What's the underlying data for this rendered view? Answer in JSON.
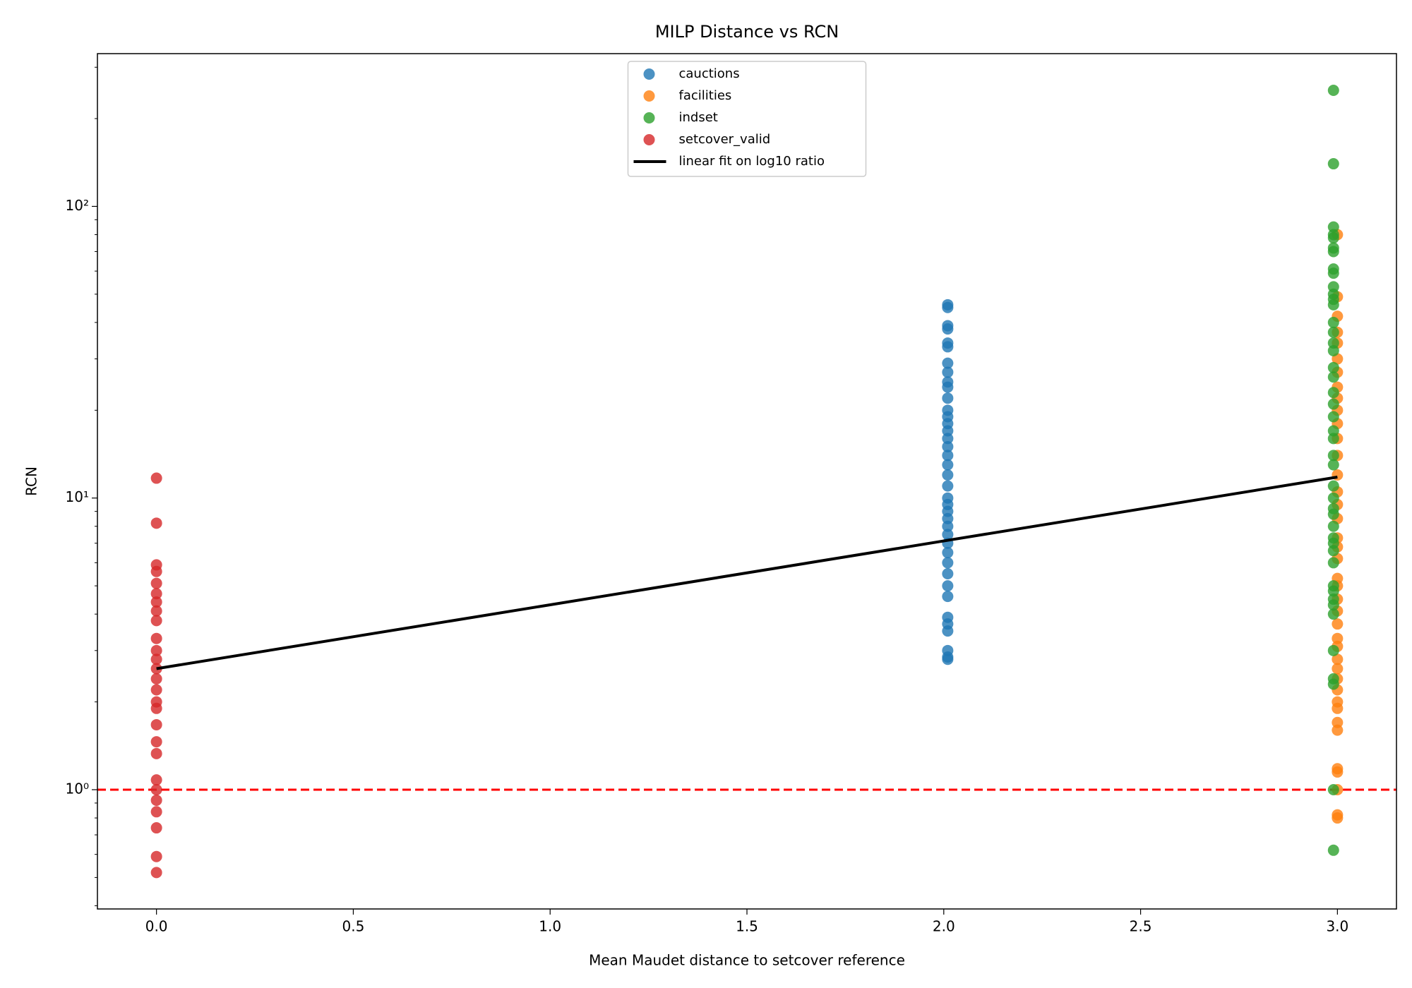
{
  "chart_data": {
    "type": "scatter",
    "title": "MILP Distance vs RCN",
    "x_label": "Mean Maudet distance to setcover reference",
    "y_label": "RCN",
    "log_y": true,
    "xlim": [
      -0.15,
      3.15
    ],
    "ylim": [
      0.39,
      334
    ],
    "xticks": [
      {
        "value": 0,
        "label": "0.0"
      },
      0.5,
      {
        "value": 1,
        "label": "1.0"
      },
      1.5,
      {
        "value": 2,
        "label": "2.0"
      },
      2.5,
      {
        "value": 3,
        "label": "3.0"
      }
    ],
    "yticks": [
      {
        "value": 1,
        "label": "10⁰"
      },
      {
        "value": 10,
        "label": "10¹"
      },
      {
        "value": 100,
        "label": "10²"
      }
    ],
    "yminorticks": [
      0.4,
      0.5,
      0.6,
      0.7,
      0.8,
      0.9,
      2,
      3,
      4,
      5,
      6,
      7,
      8,
      9,
      20,
      30,
      40,
      50,
      60,
      70,
      80,
      90,
      200,
      300
    ],
    "legend": "upper center",
    "series": [
      {
        "name": "cauctions",
        "color": "#1f77b4",
        "x": [
          2.01,
          2.01,
          2.01,
          2.01,
          2.01,
          2.01,
          2.01,
          2.01,
          2.01,
          2.01,
          2.01,
          2.01,
          2.01,
          2.01,
          2.01,
          2.01,
          2.01,
          2.01,
          2.01,
          2.01,
          2.01,
          2.01,
          2.01,
          2.01,
          2.01,
          2.01,
          2.01,
          2.01,
          2.01,
          2.01,
          2.01,
          2.01,
          2.01,
          2.01,
          2.01,
          2.01,
          2.01,
          2.01,
          2.01
        ],
        "values": [
          46,
          45,
          39,
          38,
          34,
          33,
          29,
          27,
          25,
          24,
          22,
          20,
          19,
          18,
          17,
          16,
          15,
          14,
          13,
          12,
          11,
          10,
          9.5,
          9,
          8.5,
          8,
          7.5,
          7,
          6.5,
          6,
          5.5,
          5,
          4.6,
          3.9,
          3.7,
          3.5,
          3.0,
          2.85,
          2.8
        ]
      },
      {
        "name": "facilities",
        "color": "#ff7f0e",
        "x": [
          3,
          3,
          3,
          3,
          3,
          3,
          3,
          3,
          3,
          3,
          3,
          3,
          3,
          3,
          3,
          3,
          3,
          3,
          3,
          3,
          3,
          3,
          3,
          3,
          3,
          3,
          3,
          3,
          3,
          3,
          3,
          3,
          3,
          3,
          3,
          3,
          3,
          3,
          3,
          3
        ],
        "values": [
          80,
          49,
          42,
          37,
          34,
          30,
          27,
          24,
          22,
          20,
          18,
          16,
          14,
          12,
          10.5,
          9.5,
          8.5,
          7.3,
          6.8,
          6.2,
          5.3,
          5.0,
          4.5,
          4.1,
          3.7,
          3.3,
          3.1,
          2.8,
          2.6,
          2.4,
          2.2,
          2.0,
          1.9,
          1.7,
          1.6,
          1.18,
          1.15,
          1.0,
          0.82,
          0.8
        ]
      },
      {
        "name": "indset",
        "color": "#2ca02c",
        "x": [
          2.99,
          2.99,
          2.99,
          2.99,
          2.99,
          2.99,
          2.99,
          2.99,
          2.99,
          2.99,
          2.99,
          2.99,
          2.99,
          2.99,
          2.99,
          2.99,
          2.99,
          2.99,
          2.99,
          2.99,
          2.99,
          2.99,
          2.99,
          2.99,
          2.99,
          2.99,
          2.99,
          2.99,
          2.99,
          2.99,
          2.99,
          2.99,
          2.99,
          2.99,
          2.99,
          2.99,
          2.99,
          2.99,
          2.99,
          2.99,
          2.99,
          2.99,
          2.99,
          2.99,
          2.99
        ],
        "values": [
          250,
          140,
          85,
          80,
          78,
          72,
          70,
          61,
          59,
          53,
          50,
          48,
          46,
          40,
          37,
          34,
          32,
          28,
          26,
          23,
          21,
          19,
          17,
          16,
          14,
          13,
          11,
          10,
          9.2,
          8.8,
          8,
          7.3,
          7,
          6.6,
          6,
          5,
          4.8,
          4.5,
          4.3,
          4.0,
          3.0,
          2.4,
          2.3,
          1.0,
          0.62
        ]
      },
      {
        "name": "setcover_valid",
        "color": "#d62728",
        "x": [
          0,
          0,
          0,
          0,
          0,
          0,
          0,
          0,
          0,
          0,
          0,
          0,
          0,
          0,
          0,
          0,
          0,
          0,
          0,
          0,
          0,
          0,
          0,
          0,
          0,
          0,
          0
        ],
        "values": [
          11.7,
          8.2,
          5.9,
          5.6,
          5.1,
          4.7,
          4.4,
          4.1,
          3.8,
          3.3,
          3.0,
          2.8,
          2.6,
          2.4,
          2.2,
          2.0,
          1.9,
          1.67,
          1.46,
          1.33,
          1.08,
          1.0,
          0.92,
          0.84,
          0.74,
          0.59,
          0.52
        ]
      }
    ],
    "fit": {
      "name": "linear fit on log10 ratio",
      "color": "#000000",
      "x": [
        0,
        3
      ],
      "values": [
        2.6,
        11.8
      ]
    },
    "reference_line": {
      "value": 1,
      "color": "#ff0000",
      "style": "dashed"
    }
  }
}
